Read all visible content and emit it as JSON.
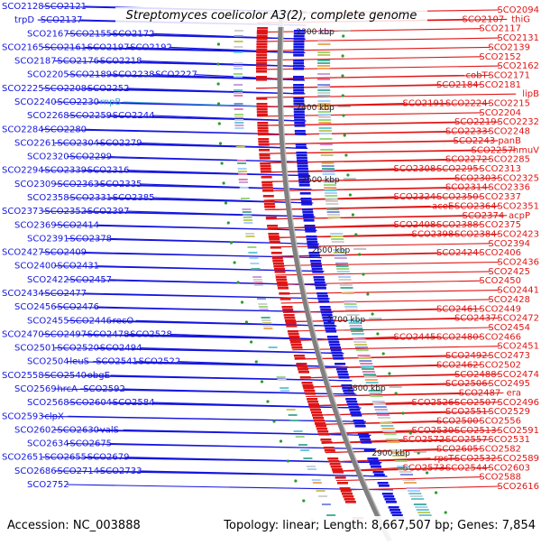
{
  "title": "Streptomyces coelicolor A3(2), complete genome",
  "footer": {
    "accession": "Accession: NC_003888",
    "summary": "Topology: linear; Length: 8,667,507 bp; Genes: 7,854"
  },
  "colors": {
    "forward": "#1515e0",
    "reverse": "#e01515",
    "rna": "#3fa0d0",
    "backbone": "#808080"
  },
  "ruler": [
    "2300 kbp",
    "2400 kbp",
    "2500 kbp",
    "2600 kbp",
    "2700 kbp",
    "2800 kbp",
    "2900 kbp"
  ],
  "left_labels": [
    "SCO2128",
    "SCO2121",
    "trpD",
    "SCO2137",
    "SCO2167",
    "SCO2155",
    "SCO2172",
    "SCO2165",
    "SCO2161",
    "SCO2197",
    "SCO2192",
    "SCO2187",
    "SCO2176",
    "SCO2218",
    "SCO2205",
    "SCO2189",
    "SCO2238",
    "SCO2227",
    "SCO2225",
    "SCO2208",
    "SCO2252",
    "SCO2240",
    "SCO2230",
    "rnpB",
    "SCO2268",
    "SCO2259",
    "SCO2244",
    "SCO2284",
    "SCO2280",
    "SCO2261",
    "SCO2304",
    "SCO2279",
    "SCO2320",
    "SCO2299",
    "SCO2294",
    "SCO2339",
    "SCO2316",
    "SCO2309",
    "SCO2363",
    "SCO2335",
    "SCO2358",
    "SCO2331",
    "SCO2385",
    "SCO2373",
    "SCO2352",
    "SCO2397",
    "SCO2369",
    "SCO2414",
    "SCO2391",
    "SCO2378",
    "SCO2427",
    "SCO2409",
    "SCO2400",
    "SCO2431",
    "SCO2422",
    "SCO2457",
    "SCO2434",
    "SCO2477",
    "SCO2456",
    "SCO2476",
    "SCO2455",
    "SCO2446",
    "recO",
    "SCO2470",
    "SCO2497",
    "SCO2478",
    "SCO2528",
    "SCO2501",
    "SCO2520",
    "SCO2494",
    "SCO2504",
    "leuS",
    "SCO2541",
    "SCO2522",
    "SCO2558",
    "SCO2540",
    "obgE",
    "SCO2569",
    "hrcA",
    "SCO2592",
    "SCO2568",
    "SCO2604",
    "SCO2584",
    "SCO2593",
    "clpX",
    "SCO2602",
    "SCO2630",
    "valS",
    "SCO2634",
    "SCO2675",
    "SCO2651",
    "SCO2655",
    "SCO2679",
    "SCO2686",
    "SCO2714",
    "SCO2733",
    "SCO2752"
  ],
  "right_labels": [
    "SCO2094",
    "SCO2107",
    "thiG",
    "SCO2117",
    "SCO2131",
    "SCO2139",
    "SCO2152",
    "SCO2162",
    "cobT",
    "SCO2171",
    "SCO2184",
    "SCO2181",
    "lipB",
    "SCO2191",
    "SCO2224",
    "SCO2215",
    "SCO2204",
    "SCO2219",
    "SCO2232",
    "SCO2233",
    "SCO2248",
    "SCO2243",
    "panB",
    "SCO2257",
    "hmuV",
    "SCO2272",
    "SCO2285",
    "SCO2308",
    "SCO2295",
    "SCO2313",
    "SCO2303",
    "SCO2325",
    "SCO2314",
    "SCO2336",
    "SCO2324",
    "SCO2350",
    "SCO2337",
    "aceE",
    "SCO2364",
    "SCO2351",
    "SCO2374",
    "acpP",
    "SCO2408",
    "SCO2388",
    "SCO2375",
    "SCO2398",
    "SCO2384",
    "SCO2423",
    "SCO2394",
    "SCO2424",
    "SCO2406",
    "SCO2436",
    "SCO2425",
    "SCO2450",
    "SCO2441",
    "SCO2428",
    "SCO2461",
    "SCO2449",
    "SCO2437",
    "SCO2472",
    "SCO2454",
    "SCO2445",
    "SCO2480",
    "SCO2466",
    "SCO2451",
    "SCO2492",
    "SCO2473",
    "SCO2462",
    "SCO2502",
    "SCO2488",
    "SCO2474",
    "SCO2506",
    "SCO2495",
    "SCO2487",
    "era",
    "SCO2526",
    "SCO2507",
    "SCO2496",
    "SCO2551",
    "SCO2529",
    "SCO2500",
    "SCO2556",
    "SCO2530",
    "SCO2513",
    "SCO2591",
    "SCO2572",
    "SCO2557",
    "SCO2531",
    "SCO2605",
    "SCO2582",
    "rpsT",
    "SCO2532",
    "SCO2589",
    "SCO2573",
    "SCO2544",
    "SCO2603",
    "SCO2588",
    "SCO2616"
  ]
}
